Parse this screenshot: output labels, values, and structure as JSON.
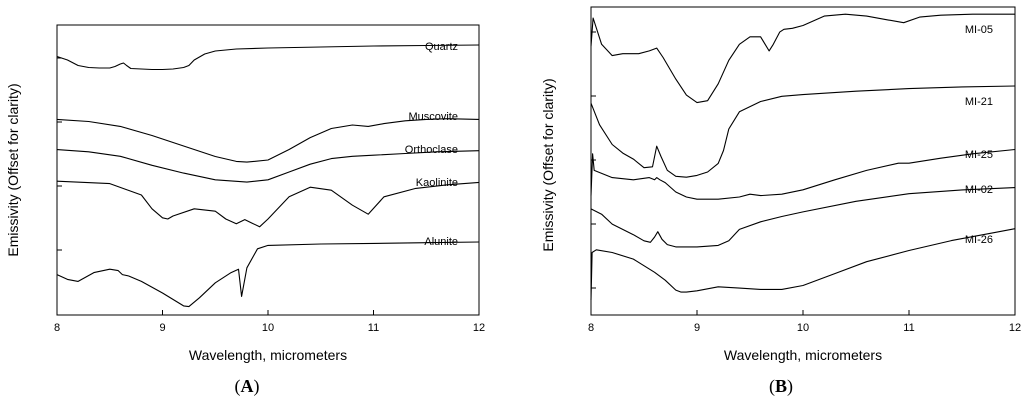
{
  "chart_data": [
    {
      "panel": "A",
      "type": "line",
      "xlabel": "Wavelength, micrometers",
      "ylabel": "Emissivity (Offset for clarity)",
      "xlim": [
        8,
        12
      ],
      "xticks": [
        "8",
        "9",
        "10",
        "11",
        "12"
      ],
      "series": [
        {
          "name": "Quartz",
          "x": [
            8.0,
            8.1,
            8.2,
            8.3,
            8.4,
            8.5,
            8.55,
            8.6,
            8.63,
            8.66,
            8.7,
            8.8,
            8.9,
            9.0,
            9.1,
            9.2,
            9.25,
            9.3,
            9.4,
            9.5,
            9.7,
            10.0,
            10.5,
            11.0,
            11.5,
            12.0
          ],
          "y": [
            0.75,
            0.68,
            0.57,
            0.53,
            0.52,
            0.52,
            0.55,
            0.6,
            0.62,
            0.57,
            0.51,
            0.5,
            0.49,
            0.49,
            0.5,
            0.53,
            0.57,
            0.68,
            0.8,
            0.86,
            0.9,
            0.92,
            0.94,
            0.96,
            0.97,
            0.98
          ]
        },
        {
          "name": "Muscovite",
          "x": [
            8.0,
            8.3,
            8.6,
            8.9,
            9.2,
            9.5,
            9.7,
            9.8,
            10.0,
            10.2,
            10.4,
            10.6,
            10.8,
            10.95,
            11.1,
            11.3,
            11.5,
            11.7,
            12.0
          ],
          "y": [
            0.98,
            0.95,
            0.88,
            0.75,
            0.6,
            0.45,
            0.38,
            0.37,
            0.4,
            0.55,
            0.72,
            0.85,
            0.9,
            0.88,
            0.92,
            0.96,
            0.98,
            0.99,
            0.98
          ]
        },
        {
          "name": "Orthoclase",
          "x": [
            8.0,
            8.3,
            8.6,
            8.9,
            9.2,
            9.5,
            9.8,
            10.0,
            10.2,
            10.4,
            10.6,
            10.8,
            11.0,
            11.3,
            11.6,
            12.0
          ],
          "y": [
            0.9,
            0.86,
            0.78,
            0.62,
            0.48,
            0.36,
            0.32,
            0.36,
            0.5,
            0.64,
            0.74,
            0.78,
            0.8,
            0.83,
            0.86,
            0.88
          ]
        },
        {
          "name": "Kaolinite",
          "x": [
            8.0,
            8.5,
            8.8,
            8.9,
            9.0,
            9.05,
            9.1,
            9.3,
            9.5,
            9.6,
            9.7,
            9.78,
            9.85,
            9.92,
            10.0,
            10.2,
            10.4,
            10.6,
            10.8,
            10.95,
            11.1,
            11.4,
            11.7,
            12.0
          ],
          "y": [
            0.98,
            0.94,
            0.75,
            0.52,
            0.37,
            0.35,
            0.4,
            0.52,
            0.48,
            0.35,
            0.27,
            0.34,
            0.28,
            0.22,
            0.35,
            0.72,
            0.88,
            0.83,
            0.58,
            0.43,
            0.72,
            0.86,
            0.92,
            0.96
          ]
        },
        {
          "name": "Alunite",
          "x": [
            8.0,
            8.1,
            8.2,
            8.35,
            8.5,
            8.58,
            8.62,
            8.68,
            8.8,
            9.0,
            9.2,
            9.25,
            9.35,
            9.5,
            9.65,
            9.72,
            9.75,
            9.8,
            9.9,
            10.0,
            10.5,
            11.0,
            11.5,
            12.0
          ],
          "y": [
            0.52,
            0.45,
            0.42,
            0.55,
            0.6,
            0.58,
            0.52,
            0.5,
            0.42,
            0.25,
            0.06,
            0.05,
            0.18,
            0.4,
            0.55,
            0.6,
            0.2,
            0.62,
            0.9,
            0.95,
            0.97,
            0.98,
            0.99,
            1.0
          ]
        }
      ]
    },
    {
      "panel": "B",
      "type": "line",
      "xlabel": "Wavelength, micrometers",
      "ylabel": "Emissivity (Offset for clarity)",
      "xlim": [
        8,
        12
      ],
      "xticks": [
        "8",
        "9",
        "10",
        "11",
        "12"
      ],
      "series": [
        {
          "name": "MI-05",
          "x": [
            8.0,
            8.02,
            8.1,
            8.2,
            8.3,
            8.45,
            8.55,
            8.62,
            8.68,
            8.8,
            8.9,
            9.0,
            9.1,
            9.2,
            9.3,
            9.4,
            9.5,
            9.6,
            9.68,
            9.72,
            9.78,
            9.82,
            9.9,
            10.0,
            10.2,
            10.4,
            10.6,
            10.8,
            10.95,
            11.1,
            11.3,
            11.6,
            12.0
          ],
          "y": [
            0.7,
            1.0,
            0.72,
            0.6,
            0.62,
            0.62,
            0.65,
            0.68,
            0.58,
            0.35,
            0.18,
            0.1,
            0.12,
            0.3,
            0.55,
            0.72,
            0.8,
            0.8,
            0.65,
            0.72,
            0.85,
            0.88,
            0.89,
            0.92,
            1.02,
            1.04,
            1.02,
            0.98,
            0.95,
            1.01,
            1.03,
            1.04,
            1.04
          ]
        },
        {
          "name": "MI-21",
          "x": [
            8.0,
            8.08,
            8.2,
            8.3,
            8.4,
            8.5,
            8.58,
            8.62,
            8.66,
            8.72,
            8.8,
            8.9,
            9.0,
            9.1,
            9.2,
            9.25,
            9.3,
            9.4,
            9.6,
            9.8,
            10.0,
            10.5,
            11.0,
            11.5,
            12.0
          ],
          "y": [
            0.8,
            0.55,
            0.32,
            0.22,
            0.15,
            0.05,
            0.06,
            0.3,
            0.18,
            0.02,
            -0.05,
            -0.06,
            -0.04,
            0.0,
            0.1,
            0.25,
            0.5,
            0.7,
            0.82,
            0.88,
            0.9,
            0.94,
            0.97,
            0.99,
            1.0
          ]
        },
        {
          "name": "MI-25",
          "x": [
            8.0,
            8.015,
            8.03,
            8.2,
            8.4,
            8.55,
            8.6,
            8.62,
            8.65,
            8.7,
            8.8,
            8.9,
            9.0,
            9.2,
            9.4,
            9.5,
            9.6,
            9.8,
            10.0,
            10.3,
            10.6,
            10.9,
            11.0,
            11.3,
            11.6,
            12.0
          ],
          "y": [
            0.2,
            0.78,
            0.55,
            0.45,
            0.42,
            0.45,
            0.42,
            0.45,
            0.42,
            0.38,
            0.25,
            0.18,
            0.15,
            0.15,
            0.18,
            0.22,
            0.2,
            0.22,
            0.28,
            0.42,
            0.55,
            0.65,
            0.65,
            0.72,
            0.78,
            0.84
          ]
        },
        {
          "name": "MI-02",
          "x": [
            8.0,
            8.1,
            8.2,
            8.4,
            8.5,
            8.56,
            8.6,
            8.63,
            8.67,
            8.72,
            8.8,
            9.0,
            9.2,
            9.3,
            9.4,
            9.6,
            9.8,
            10.0,
            10.5,
            11.0,
            11.5,
            12.0
          ],
          "y": [
            0.62,
            0.55,
            0.42,
            0.28,
            0.2,
            0.18,
            0.25,
            0.32,
            0.22,
            0.15,
            0.12,
            0.12,
            0.14,
            0.2,
            0.35,
            0.45,
            0.52,
            0.58,
            0.72,
            0.82,
            0.87,
            0.9
          ]
        },
        {
          "name": "MI-26",
          "x": [
            8.0,
            8.01,
            8.05,
            8.2,
            8.4,
            8.6,
            8.7,
            8.8,
            8.85,
            8.9,
            9.0,
            9.2,
            9.4,
            9.6,
            9.8,
            10.0,
            10.3,
            10.6,
            11.0,
            11.4,
            11.8,
            12.0
          ],
          "y": [
            0.0,
            0.72,
            0.76,
            0.72,
            0.62,
            0.42,
            0.3,
            0.15,
            0.12,
            0.12,
            0.14,
            0.2,
            0.18,
            0.16,
            0.16,
            0.22,
            0.4,
            0.58,
            0.75,
            0.9,
            1.02,
            1.08
          ]
        }
      ]
    }
  ],
  "panel_labels": [
    {
      "open": "(",
      "letter": "A",
      "close": ")"
    },
    {
      "open": "(",
      "letter": "B",
      "close": ")"
    }
  ]
}
